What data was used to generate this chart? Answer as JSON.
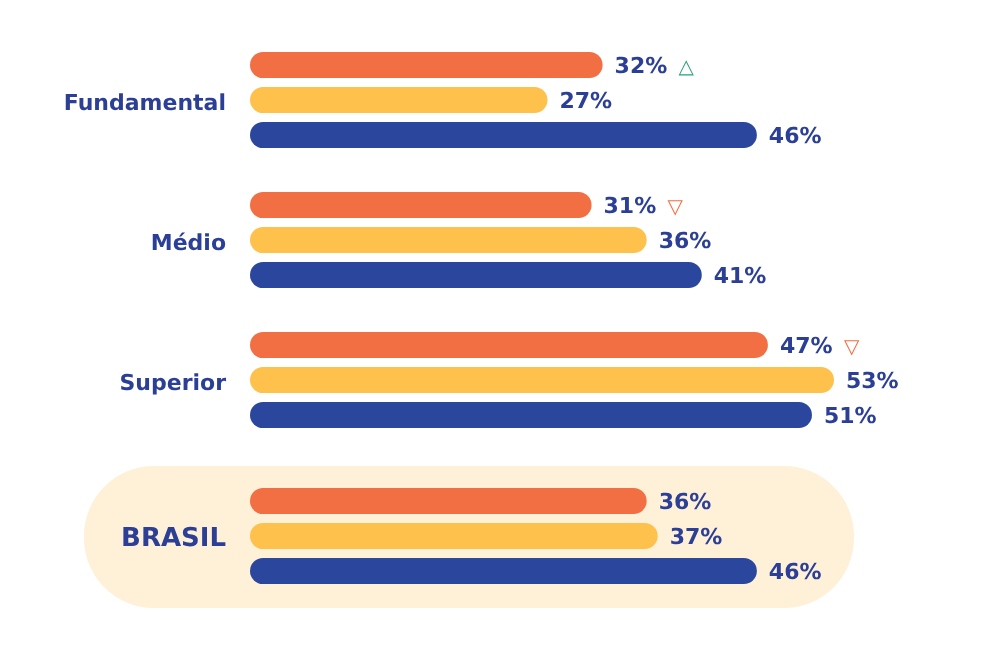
{
  "chart_data": {
    "type": "bar",
    "orientation": "horizontal",
    "categories": [
      "Fundamental",
      "Médio",
      "Superior",
      "BRASIL"
    ],
    "series": [
      {
        "color": "#f26f43",
        "values": [
          32,
          31,
          47,
          36
        ],
        "value_labels": [
          "32%",
          "31%",
          "47%",
          "36%"
        ]
      },
      {
        "color": "#fec14b",
        "values": [
          27,
          36,
          53,
          37
        ],
        "value_labels": [
          "27%",
          "36%",
          "53%",
          "37%"
        ]
      },
      {
        "color": "#2b479d",
        "values": [
          46,
          41,
          51,
          46
        ],
        "value_labels": [
          "46%",
          "41%",
          "51%",
          "46%"
        ]
      }
    ],
    "annotations": [
      "△",
      "▽",
      "▽"
    ]
  }
}
